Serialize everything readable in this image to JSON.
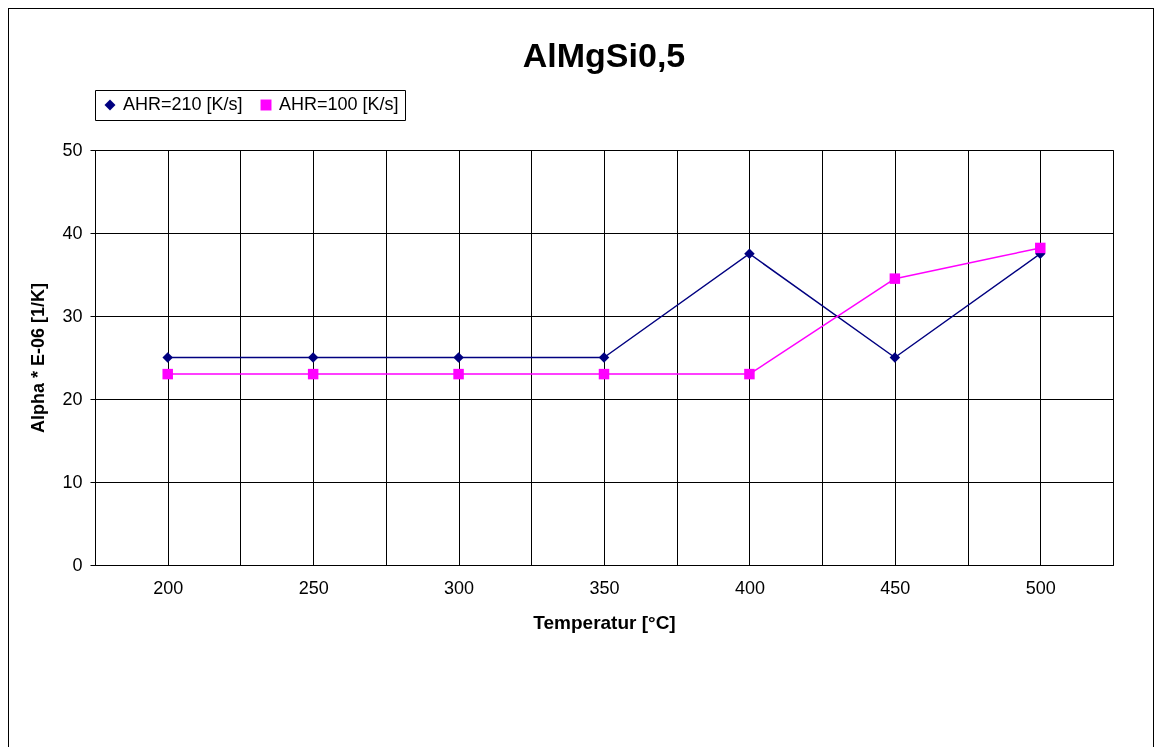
{
  "chart_data": {
    "type": "line",
    "title": "AlMgSi0,5",
    "xlabel": "Temperatur [°C]",
    "ylabel": "Alpha * E-06 [1/K]",
    "x": [
      200,
      250,
      300,
      350,
      400,
      450,
      500
    ],
    "series": [
      {
        "name": "AHR=210 [K/s]",
        "color": "#000080",
        "marker": "diamond",
        "values": [
          25,
          25,
          25,
          25,
          37.5,
          25,
          37.5
        ]
      },
      {
        "name": "AHR=100 [K/s]",
        "color": "#ff00ff",
        "marker": "square",
        "values": [
          23,
          23,
          23,
          23,
          23,
          34.5,
          38.2
        ]
      }
    ],
    "xlim": [
      175,
      525
    ],
    "xticks": [
      200,
      {
        "value": 225,
        "label": null
      },
      250,
      {
        "value": 275,
        "label": null
      },
      300,
      {
        "value": 325,
        "label": null
      },
      350,
      {
        "value": 375,
        "label": null
      },
      400,
      {
        "value": 425,
        "label": null
      },
      450,
      {
        "value": 475,
        "label": null
      },
      500
    ],
    "ylim": [
      0,
      50
    ],
    "yticks": [
      0,
      10,
      20,
      30,
      40,
      50
    ],
    "grid": true,
    "legend": "top",
    "line_style": "solid"
  }
}
